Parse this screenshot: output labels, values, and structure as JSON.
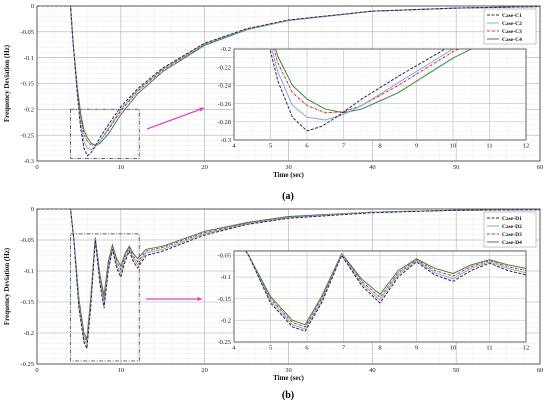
{
  "colors": {
    "case1": "#2b2b4b",
    "case2": "#8fa4df",
    "case3": "#d42424",
    "case4": "#2f8c3c",
    "arrow": "#e040c0",
    "box": "#555555"
  },
  "chart_data": [
    {
      "type": "line",
      "caption": "(a)",
      "xlabel": "Time (sec)",
      "ylabel": "Frequency Deviation (Hz)",
      "xlim": [
        0,
        60
      ],
      "ylim": [
        -0.3,
        0
      ],
      "xticks": [
        "0",
        "10",
        "20",
        "30",
        "40",
        "50",
        "60"
      ],
      "yticks": [
        "0",
        "-0.05",
        "-0.1",
        "-0.15",
        "-0.2",
        "-0.25",
        "-0.3"
      ],
      "grid": true,
      "legend_position": "top-right",
      "series": [
        {
          "name": "Case-C1",
          "dash": "dashed",
          "x": [
            0,
            4,
            4.3,
            4.8,
            5.2,
            5.6,
            6,
            6.4,
            6.8,
            7.5,
            8.5,
            10,
            12,
            15,
            20,
            25,
            30,
            40,
            50,
            60
          ],
          "y": [
            0,
            0,
            -0.07,
            -0.17,
            -0.235,
            -0.275,
            -0.29,
            -0.285,
            -0.275,
            -0.255,
            -0.23,
            -0.195,
            -0.16,
            -0.12,
            -0.072,
            -0.044,
            -0.027,
            -0.01,
            -0.004,
            -0.001
          ]
        },
        {
          "name": "Case-C2",
          "dash": "solid",
          "x": [
            0,
            4,
            4.3,
            4.8,
            5.2,
            5.6,
            6,
            6.5,
            7,
            7.5,
            8.5,
            10,
            12,
            15,
            20,
            25,
            30,
            40,
            50,
            60
          ],
          "y": [
            0,
            0,
            -0.07,
            -0.165,
            -0.225,
            -0.262,
            -0.275,
            -0.278,
            -0.272,
            -0.262,
            -0.237,
            -0.2,
            -0.163,
            -0.122,
            -0.073,
            -0.045,
            -0.028,
            -0.01,
            -0.004,
            -0.001
          ]
        },
        {
          "name": "Case-C3",
          "dash": "dotdash",
          "x": [
            0,
            4,
            4.3,
            4.8,
            5.2,
            5.6,
            6,
            6.5,
            7,
            7.5,
            8.5,
            10,
            12,
            15,
            20,
            25,
            30,
            40,
            50,
            60
          ],
          "y": [
            0,
            0,
            -0.07,
            -0.16,
            -0.215,
            -0.248,
            -0.262,
            -0.27,
            -0.269,
            -0.262,
            -0.24,
            -0.203,
            -0.165,
            -0.124,
            -0.074,
            -0.045,
            -0.028,
            -0.01,
            -0.004,
            -0.001
          ]
        },
        {
          "name": "Case-C4",
          "dash": "solid",
          "x": [
            0,
            4,
            4.3,
            4.8,
            5.2,
            5.6,
            6,
            6.5,
            7,
            7.5,
            8.5,
            10,
            12,
            15,
            20,
            25,
            30,
            40,
            50,
            60
          ],
          "y": [
            0,
            0,
            -0.07,
            -0.155,
            -0.208,
            -0.24,
            -0.255,
            -0.266,
            -0.27,
            -0.266,
            -0.248,
            -0.21,
            -0.17,
            -0.127,
            -0.076,
            -0.046,
            -0.028,
            -0.01,
            -0.004,
            -0.001
          ]
        }
      ],
      "inset": {
        "xlim": [
          4,
          12
        ],
        "ylim": [
          -0.3,
          -0.2
        ],
        "xticks": [
          "4",
          "5",
          "6",
          "7",
          "8",
          "9",
          "10",
          "11",
          "12"
        ],
        "yticks": [
          "-0.2",
          "-0.22",
          "-0.24",
          "-0.26",
          "-0.28",
          "-0.3"
        ],
        "zoom_box": {
          "x": [
            4,
            12.2
          ],
          "y": [
            -0.295,
            -0.2
          ]
        }
      }
    },
    {
      "type": "line",
      "caption": "(b)",
      "xlabel": "Time (sec)",
      "ylabel": "Frequency Deviation (Hz)",
      "xlim": [
        0,
        60
      ],
      "ylim": [
        -0.25,
        0
      ],
      "xticks": [
        "0",
        "10",
        "20",
        "30",
        "40",
        "50",
        "60"
      ],
      "yticks": [
        "0",
        "-0.05",
        "-0.1",
        "-0.15",
        "-0.2",
        "-0.25"
      ],
      "grid": true,
      "legend_position": "top-right",
      "series": [
        {
          "name": "Case-D1",
          "dash": "dashed",
          "x": [
            0,
            4,
            4.4,
            5,
            5.6,
            5.95,
            6.4,
            6.95,
            7.5,
            8,
            8.5,
            9,
            9.5,
            10,
            10.5,
            11,
            11.5,
            12,
            13,
            15,
            20,
            25,
            30,
            40,
            50,
            60
          ],
          "y": [
            0,
            0,
            -0.05,
            -0.16,
            -0.215,
            -0.225,
            -0.16,
            -0.05,
            -0.12,
            -0.16,
            -0.1,
            -0.065,
            -0.095,
            -0.11,
            -0.085,
            -0.068,
            -0.085,
            -0.095,
            -0.075,
            -0.068,
            -0.042,
            -0.025,
            -0.015,
            -0.006,
            -0.002,
            -0.001
          ]
        },
        {
          "name": "Case-D2",
          "dash": "solid",
          "x": [
            0,
            4,
            4.4,
            5,
            5.6,
            5.95,
            6.4,
            6.95,
            7.5,
            8,
            8.5,
            9,
            9.5,
            10,
            10.5,
            11,
            11.5,
            12,
            13,
            15,
            20,
            25,
            30,
            40,
            50,
            60
          ],
          "y": [
            0,
            0,
            -0.05,
            -0.155,
            -0.21,
            -0.22,
            -0.155,
            -0.048,
            -0.115,
            -0.153,
            -0.095,
            -0.062,
            -0.09,
            -0.104,
            -0.08,
            -0.065,
            -0.08,
            -0.09,
            -0.071,
            -0.065,
            -0.04,
            -0.024,
            -0.014,
            -0.005,
            -0.002,
            -0.001
          ]
        },
        {
          "name": "Case-D3",
          "dash": "dotdash",
          "x": [
            0,
            4,
            4.4,
            5,
            5.6,
            5.95,
            6.4,
            6.95,
            7.5,
            8,
            8.5,
            9,
            9.5,
            10,
            10.5,
            11,
            11.5,
            12,
            13,
            15,
            20,
            25,
            30,
            40,
            50,
            60
          ],
          "y": [
            0,
            0,
            -0.05,
            -0.15,
            -0.205,
            -0.215,
            -0.15,
            -0.047,
            -0.11,
            -0.147,
            -0.09,
            -0.06,
            -0.085,
            -0.098,
            -0.076,
            -0.062,
            -0.076,
            -0.085,
            -0.068,
            -0.062,
            -0.038,
            -0.023,
            -0.013,
            -0.005,
            -0.002,
            -0.001
          ]
        },
        {
          "name": "Case-D4",
          "dash": "solid",
          "x": [
            0,
            4,
            4.4,
            5,
            5.6,
            5.95,
            6.4,
            6.95,
            7.5,
            8,
            8.5,
            9,
            9.5,
            10,
            10.5,
            11,
            11.5,
            12,
            13,
            15,
            20,
            25,
            30,
            40,
            50,
            60
          ],
          "y": [
            0,
            0,
            -0.05,
            -0.145,
            -0.2,
            -0.21,
            -0.145,
            -0.046,
            -0.105,
            -0.14,
            -0.085,
            -0.058,
            -0.08,
            -0.092,
            -0.072,
            -0.06,
            -0.072,
            -0.08,
            -0.065,
            -0.06,
            -0.036,
            -0.022,
            -0.012,
            -0.005,
            -0.002,
            -0.001
          ]
        }
      ],
      "inset": {
        "xlim": [
          4,
          12
        ],
        "ylim": [
          -0.25,
          -0.04
        ],
        "xticks": [
          "4",
          "5",
          "6",
          "7",
          "8",
          "9",
          "10",
          "11",
          "12"
        ],
        "yticks": [
          "-0.05",
          "-0.1",
          "-0.15",
          "-0.2",
          "-0.25"
        ],
        "ytick_values": [
          -0.05,
          -0.1,
          -0.15,
          -0.2,
          -0.25
        ],
        "zoom_box": {
          "x": [
            4,
            12.2
          ],
          "y": [
            -0.245,
            -0.04
          ]
        }
      }
    }
  ]
}
